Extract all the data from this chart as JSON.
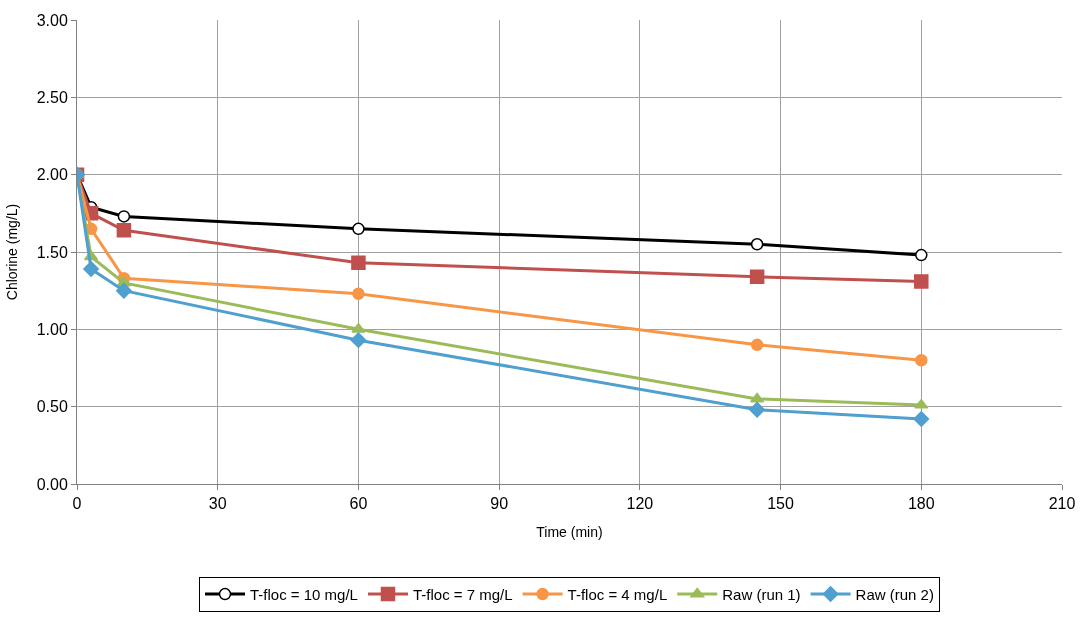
{
  "chart_data": {
    "type": "line",
    "xlabel": "Time (min)",
    "ylabel": "Chlorine (mg/L)",
    "x": [
      0,
      3,
      10,
      60,
      145,
      180
    ],
    "xlim": [
      0,
      210
    ],
    "xticks": [
      0,
      30,
      60,
      90,
      120,
      150,
      180,
      210
    ],
    "ylim": [
      0,
      3
    ],
    "yticks": [
      {
        "value": 0,
        "label": "0.00"
      },
      {
        "value": 0.5,
        "label": "0.50"
      },
      {
        "value": 1,
        "label": "1.00"
      },
      {
        "value": 1.5,
        "label": "1.50"
      },
      {
        "value": 2,
        "label": "2.00"
      },
      {
        "value": 2.5,
        "label": "2.50"
      },
      {
        "value": 3,
        "label": "3.00"
      }
    ],
    "grid": true,
    "legend": "bottom",
    "series": [
      {
        "name": "T-floc = 10 mg/L",
        "color": "#000000",
        "marker": "circle",
        "values": [
          2.0,
          1.79,
          1.73,
          1.65,
          1.55,
          1.48
        ]
      },
      {
        "name": "T-floc = 7 mg/L",
        "color": "#c0504d",
        "marker": "square",
        "values": [
          2.0,
          1.75,
          1.64,
          1.43,
          1.34,
          1.31
        ]
      },
      {
        "name": "T-floc = 4 mg/L",
        "color": "#f79646",
        "marker": "circle",
        "values": [
          2.0,
          1.65,
          1.33,
          1.23,
          0.9,
          0.8
        ]
      },
      {
        "name": "Raw (run 1)",
        "color": "#9bbb59",
        "marker": "triangle",
        "values": [
          2.0,
          1.47,
          1.3,
          1.0,
          0.55,
          0.51
        ]
      },
      {
        "name": "Raw (run 2)",
        "color": "#4f9fcf",
        "marker": "diamond",
        "values": [
          2.0,
          1.39,
          1.25,
          0.93,
          0.48,
          0.42
        ]
      }
    ]
  }
}
